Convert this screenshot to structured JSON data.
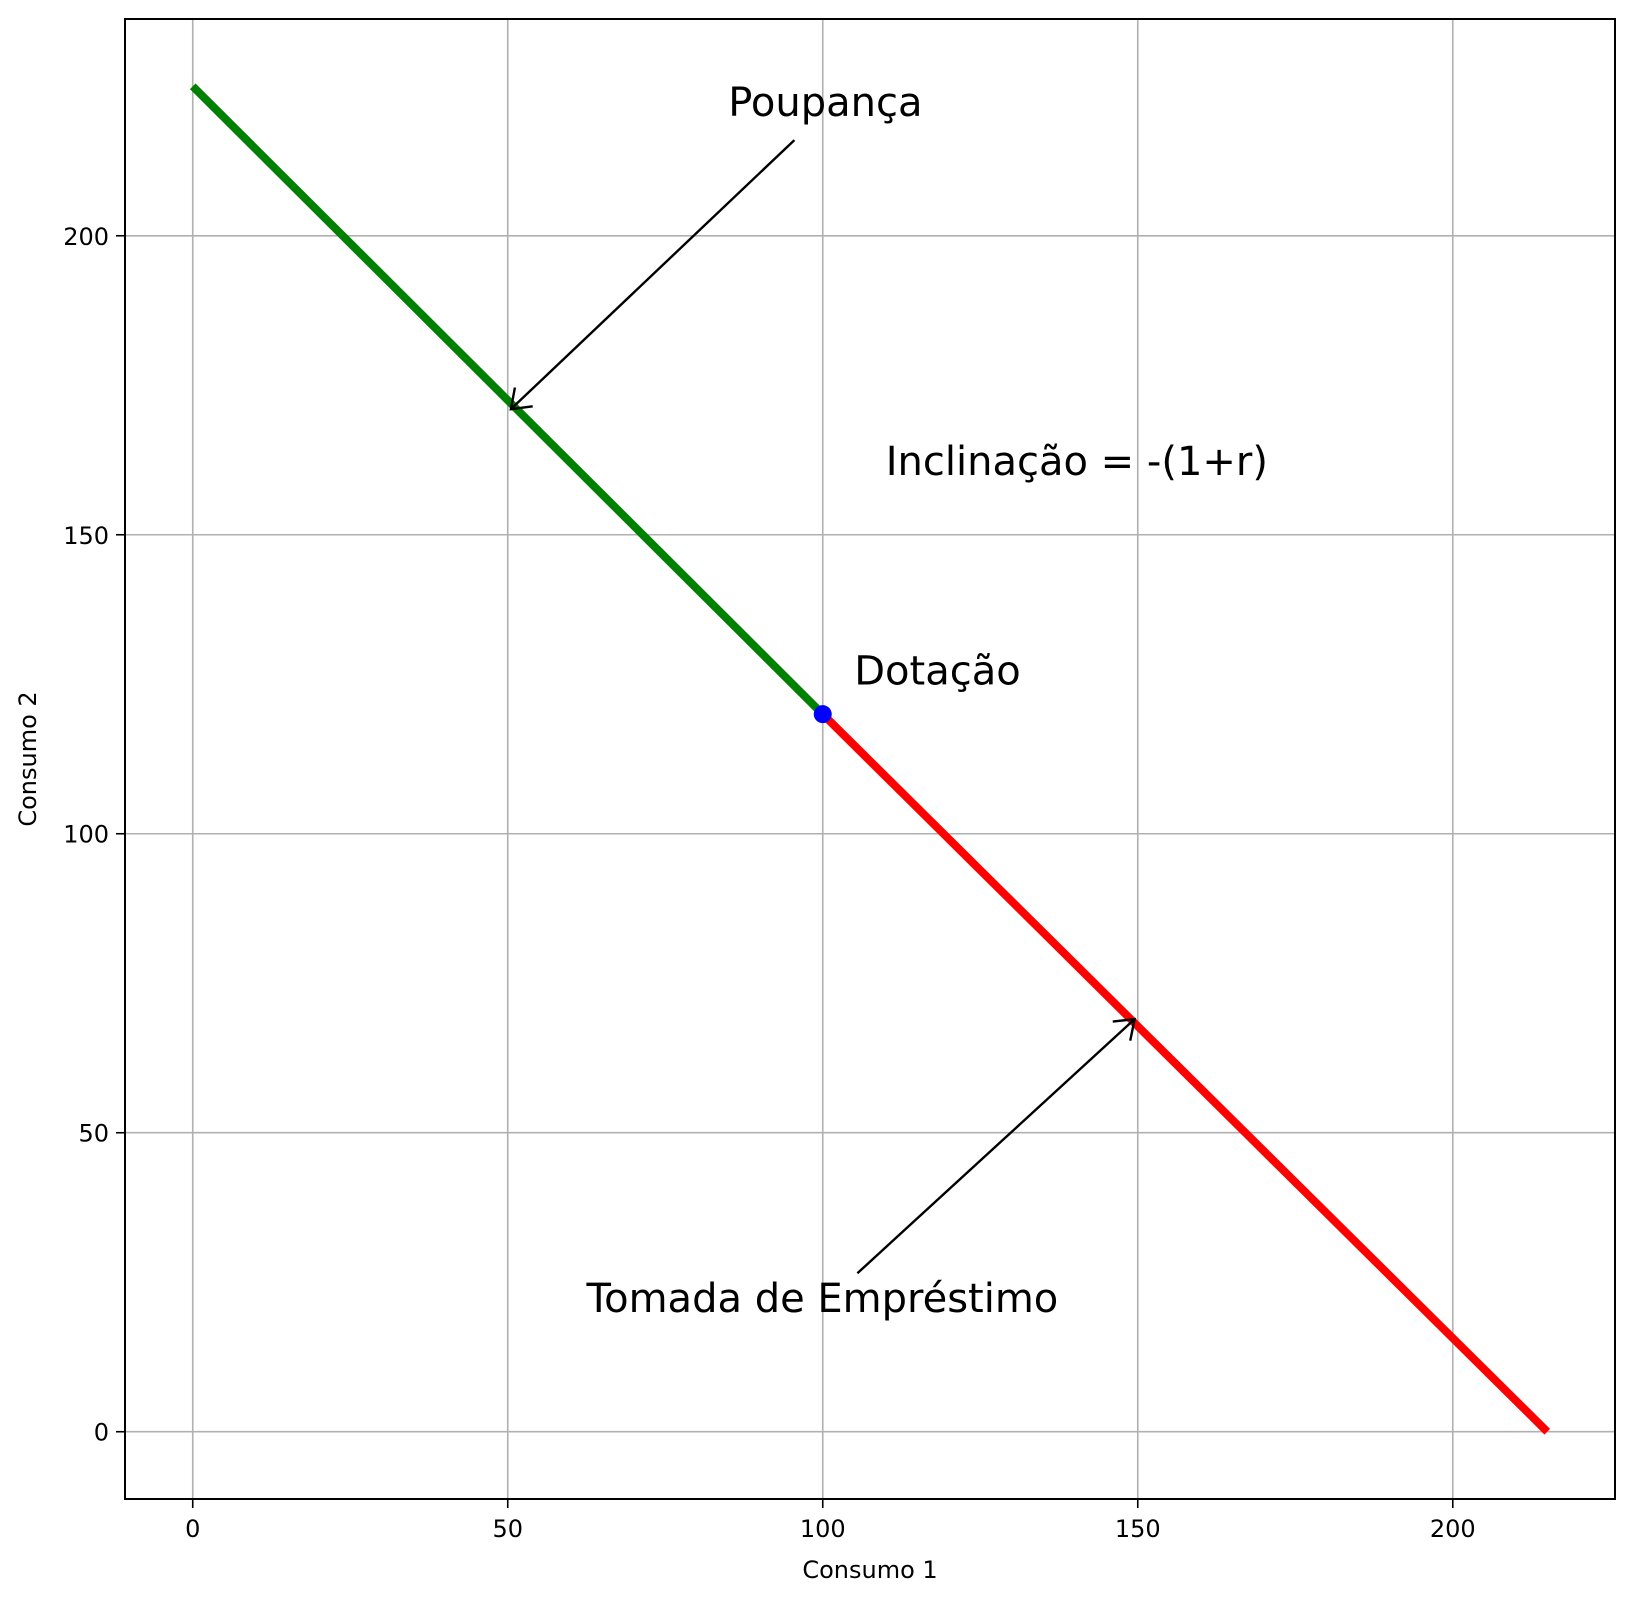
{
  "chart_data": {
    "type": "line",
    "xlabel": "Consumo 1",
    "ylabel": "Consumo 2",
    "xlim": [
      -10.75,
      225.75
    ],
    "ylim": [
      -11.25,
      236.25
    ],
    "xticks": [
      0,
      50,
      100,
      150,
      200
    ],
    "yticks": [
      0,
      50,
      100,
      150,
      200
    ],
    "grid": true,
    "series": [
      {
        "color": "#008000",
        "x": [
          0,
          100
        ],
        "y": [
          225,
          120
        ]
      },
      {
        "color": "#ff0000",
        "x": [
          100,
          215
        ],
        "y": [
          120,
          0
        ]
      }
    ],
    "points": [
      {
        "x": 100,
        "y": 120,
        "color": "#0000ff"
      }
    ],
    "annotations": [
      {
        "id": "poupanca",
        "text": "Poupança",
        "text_x": 85,
        "text_y": 220,
        "arrow_to": [
          50.5,
          171
        ]
      },
      {
        "id": "inclinacao",
        "text": "Inclinação = -(1+r)",
        "text_x": 110,
        "text_y": 160
      },
      {
        "id": "dotacao",
        "text": "Dotação",
        "text_x": 105,
        "text_y": 125
      },
      {
        "id": "tomada",
        "text": "Tomada de Empréstimo",
        "text_x": 62.5,
        "text_y": 20,
        "arrow_to": [
          149.5,
          69
        ]
      }
    ]
  }
}
